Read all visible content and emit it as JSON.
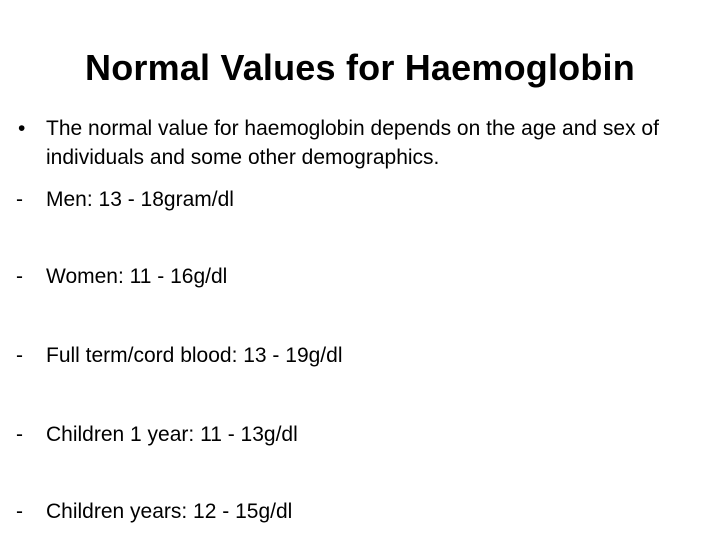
{
  "slide": {
    "title": "Normal Values for Haemoglobin",
    "intro_bullet": {
      "marker": "•",
      "text": "The normal value for haemoglobin depends on the age and sex of individuals and some other demographics."
    },
    "items": [
      {
        "marker": "-",
        "text": "Men:  13 - 18gram/dl"
      },
      {
        "marker": "-",
        "text": "Women: 11 - 16g/dl"
      },
      {
        "marker": "-",
        "text": "Full term/cord blood: 13 - 19g/dl"
      },
      {
        "marker": "-",
        "text": "Children 1 year: 11 - 13g/dl"
      },
      {
        "marker": "-",
        "text": "Children years: 12 - 15g/dl"
      }
    ]
  }
}
